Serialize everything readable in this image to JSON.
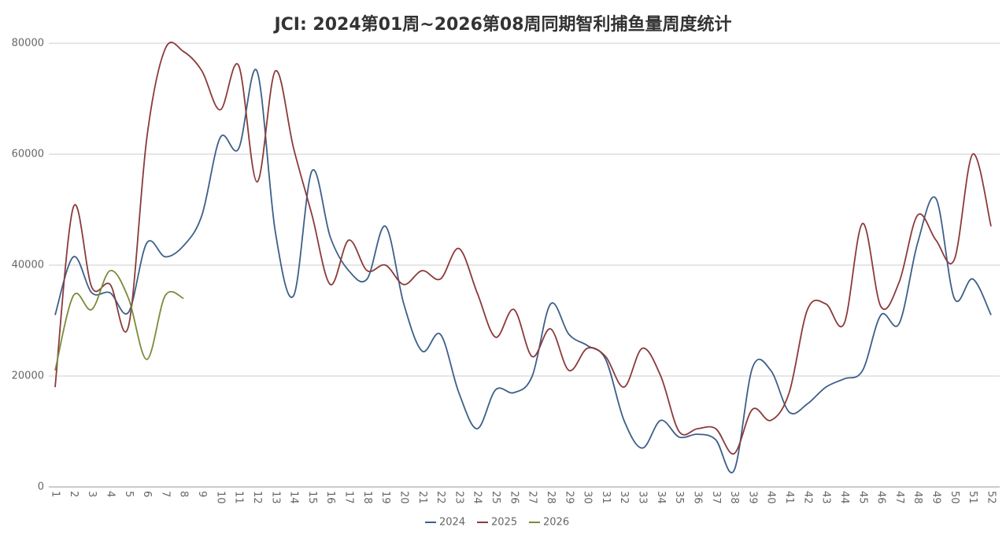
{
  "chart_data": {
    "type": "line",
    "title": "JCI: 2024第01周~2026第08周同期智利捕鱼量周度统计",
    "categories": [
      "1",
      "2",
      "3",
      "4",
      "5",
      "6",
      "7",
      "8",
      "9",
      "10",
      "11",
      "12",
      "13",
      "14",
      "15",
      "16",
      "17",
      "18",
      "19",
      "20",
      "21",
      "22",
      "23",
      "24",
      "25",
      "26",
      "27",
      "28",
      "29",
      "30",
      "31",
      "32",
      "33",
      "34",
      "35",
      "36",
      "37",
      "38",
      "39",
      "40",
      "41",
      "42",
      "43",
      "44",
      "45",
      "46",
      "47",
      "48",
      "49",
      "50",
      "51",
      "52"
    ],
    "series": [
      {
        "name": "2024",
        "color": "#3d5f8a",
        "values": [
          31000,
          41500,
          35000,
          35000,
          31500,
          44000,
          41500,
          43500,
          49000,
          63000,
          61000,
          75000,
          46000,
          34500,
          57000,
          45000,
          39000,
          37500,
          47000,
          33000,
          24500,
          27500,
          17000,
          10500,
          17500,
          17000,
          20000,
          33000,
          27500,
          25500,
          23000,
          12000,
          7000,
          12000,
          9000,
          9500,
          8500,
          3000,
          21500,
          21000,
          13500,
          15000,
          18000,
          19500,
          21000,
          31000,
          29500,
          44000,
          52000,
          34000,
          37500,
          31000
        ]
      },
      {
        "name": "2025",
        "color": "#8b3a3a",
        "values": [
          18000,
          50500,
          36000,
          36500,
          29000,
          63000,
          79000,
          78500,
          75000,
          68000,
          76000,
          55000,
          75000,
          61000,
          49000,
          36500,
          44500,
          39000,
          40000,
          36500,
          39000,
          37500,
          43000,
          35000,
          27000,
          32000,
          23500,
          28500,
          21000,
          25000,
          23500,
          18000,
          25000,
          20000,
          10000,
          10500,
          10500,
          6000,
          14000,
          12000,
          17000,
          32000,
          33000,
          29500,
          47500,
          32500,
          37000,
          49000,
          44500,
          41000,
          60000,
          47000
        ]
      },
      {
        "name": "2026",
        "color": "#7b8a3a",
        "values": [
          21000,
          34500,
          32000,
          39000,
          34000,
          23000,
          34500,
          34000,
          null,
          null,
          null,
          null,
          null,
          null,
          null,
          null,
          null,
          null,
          null,
          null,
          null,
          null,
          null,
          null,
          null,
          null,
          null,
          null,
          null,
          null,
          null,
          null,
          null,
          null,
          null,
          null,
          null,
          null,
          null,
          null,
          null,
          null,
          null,
          null,
          null,
          null,
          null,
          null,
          null,
          null,
          null,
          null
        ]
      }
    ],
    "ylim": [
      0,
      80000
    ],
    "yticks": [
      0,
      20000,
      40000,
      60000,
      80000
    ],
    "grid": true
  }
}
